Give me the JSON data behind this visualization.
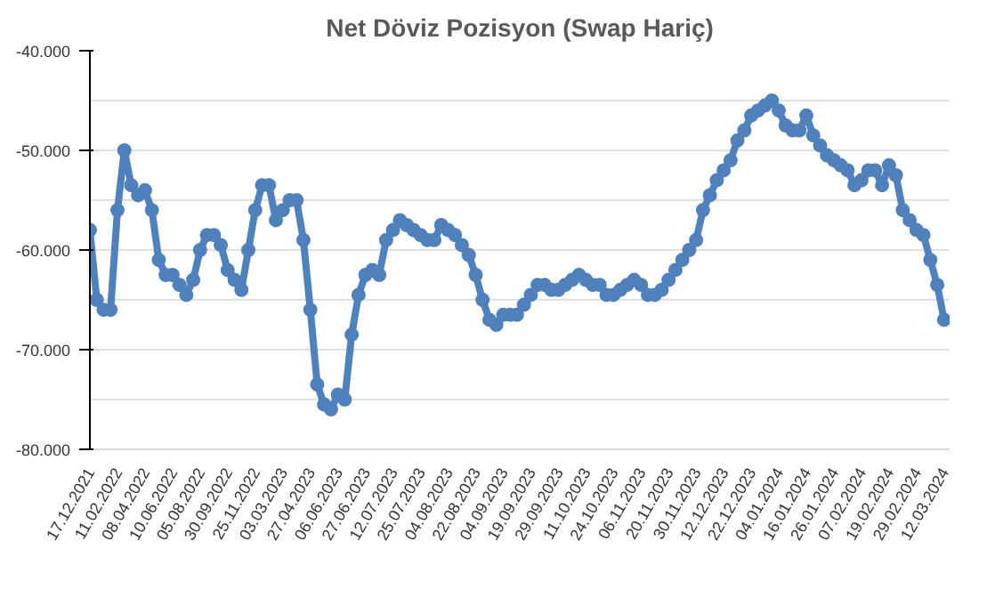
{
  "chart_data": {
    "type": "line",
    "title": "Net Döviz Pozisyon (Swap Hariç)",
    "categories": [
      "17.12.2021",
      null,
      null,
      null,
      "11.02.2022",
      null,
      null,
      null,
      "08.04.2022",
      null,
      null,
      null,
      "10.06.2022",
      null,
      null,
      null,
      "05.08.2022",
      null,
      null,
      null,
      "30.09.2022",
      null,
      null,
      null,
      "25.11.2022",
      null,
      null,
      null,
      "03.03.2023",
      null,
      null,
      null,
      "27.04.2023",
      null,
      null,
      null,
      "06.06.2023",
      null,
      null,
      null,
      "27.06.2023",
      null,
      null,
      null,
      "12.07.2023",
      null,
      null,
      null,
      "25.07.2023",
      null,
      null,
      null,
      "04.08.2023",
      null,
      null,
      null,
      "22.08.2023",
      null,
      null,
      null,
      "04.09.2023",
      null,
      null,
      null,
      "19.09.2023",
      null,
      null,
      null,
      "29.09.2023",
      null,
      null,
      null,
      "11.10.2023",
      null,
      null,
      null,
      "24.10.2023",
      null,
      null,
      null,
      "06.11.2023",
      null,
      null,
      null,
      "20.11.2023",
      null,
      null,
      null,
      "30.11.2023",
      null,
      null,
      null,
      "12.12.2023",
      null,
      null,
      null,
      "22.12.2023",
      null,
      null,
      null,
      "04.01.2024",
      null,
      null,
      null,
      "16.01.2024",
      null,
      null,
      null,
      "26.01.2024",
      null,
      null,
      null,
      "07.02.2024",
      null,
      null,
      null,
      "19.02.2024",
      null,
      null,
      null,
      "29.02.2024",
      null,
      null,
      null,
      "12.03.2024"
    ],
    "series": [
      {
        "color": "#4f81bd",
        "values": [
          -58000,
          -65000,
          -66000,
          -66000,
          -56000,
          -50000,
          -53500,
          -54500,
          -54000,
          -56000,
          -61000,
          -62500,
          -62500,
          -63500,
          -64500,
          -63000,
          -60000,
          -58500,
          -58500,
          -59500,
          -62000,
          -63000,
          -64000,
          -60000,
          -56000,
          -53500,
          -53500,
          -57000,
          -56000,
          -55000,
          -55000,
          -59000,
          -66000,
          -73500,
          -75500,
          -76000,
          -74500,
          -75000,
          -68500,
          -64500,
          -62500,
          -62000,
          -62500,
          -59000,
          -58000,
          -57000,
          -57500,
          -58000,
          -58500,
          -59000,
          -59000,
          -57500,
          -58000,
          -58500,
          -59500,
          -60500,
          -62500,
          -65000,
          -67000,
          -67500,
          -66500,
          -66500,
          -66500,
          -65500,
          -64500,
          -63500,
          -63500,
          -64000,
          -64000,
          -63500,
          -63000,
          -62500,
          -63000,
          -63500,
          -63500,
          -64500,
          -64500,
          -64000,
          -63500,
          -63000,
          -63500,
          -64500,
          -64500,
          -64000,
          -63000,
          -62000,
          -61000,
          -60000,
          -59000,
          -56000,
          -54500,
          -53000,
          -52000,
          -51000,
          -49000,
          -48000,
          -46500,
          -46000,
          -45500,
          -45000,
          -46000,
          -47500,
          -48000,
          -48000,
          -46500,
          -48500,
          -49500,
          -50500,
          -51000,
          -51500,
          -52000,
          -53500,
          -53000,
          -52000,
          -52000,
          -53500,
          -51500,
          -52500,
          -56000,
          -57000,
          -58000,
          -58500,
          -61000,
          -63500,
          -67000
        ]
      }
    ],
    "ylim": [
      -80000,
      -40000
    ],
    "yticks": [
      {
        "value": -80000,
        "label": "-80.000"
      },
      {
        "value": -75000,
        "label": null
      },
      {
        "value": -70000,
        "label": "-70.000"
      },
      {
        "value": -65000,
        "label": null
      },
      {
        "value": -60000,
        "label": "-60.000"
      },
      {
        "value": -55000,
        "label": null
      },
      {
        "value": -50000,
        "label": "-50.000"
      },
      {
        "value": -45000,
        "label": null
      },
      {
        "value": -40000,
        "label": "-40.000"
      }
    ],
    "grid": "y",
    "marker": "circle",
    "line_style": "solid"
  }
}
